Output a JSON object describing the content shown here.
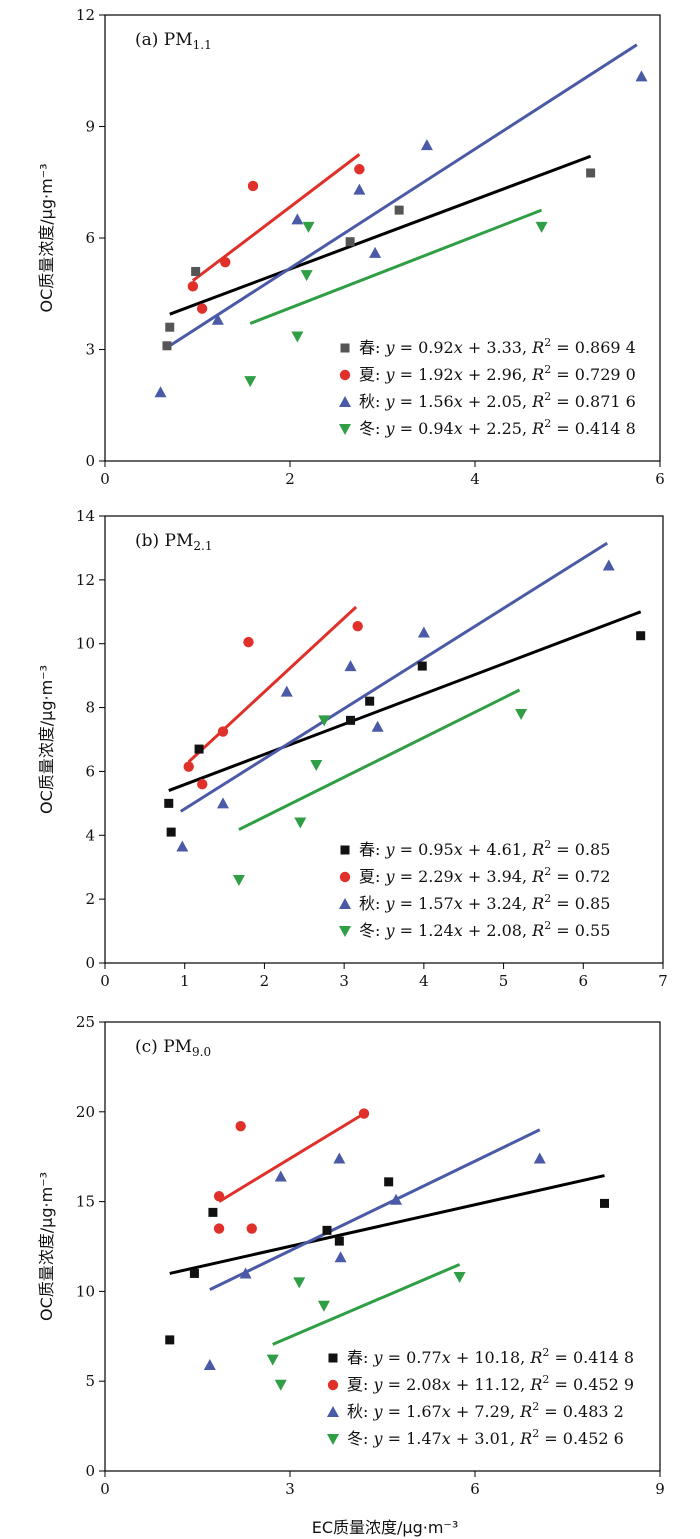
{
  "figure": {
    "xlabel": "EC质量浓度/μg·m⁻³",
    "ylabel": "OC质量浓度/μg·m⁻³"
  },
  "colors": {
    "spring": "#000000",
    "summer": "#e0302a",
    "autumn": "#4a5aa6",
    "winter": "#2f9e44"
  },
  "chart_data": [
    {
      "type": "scatter",
      "panel_label": "(a) PM",
      "panel_sub": "1.1",
      "xlim": [
        0,
        6
      ],
      "ylim": [
        0,
        12
      ],
      "xticks": [
        "0",
        "2",
        "4",
        "6"
      ],
      "yticks": [
        "0",
        "3",
        "6",
        "9",
        "12"
      ],
      "series": [
        {
          "name": "春",
          "marker": "square",
          "color": "#555555",
          "fit_color": "#000000",
          "eq_prefix": "y = 0.92x + 3.33, ",
          "r2": "R² = 0.869 4",
          "x": [
            0.67,
            0.7,
            0.98,
            2.65,
            3.18,
            5.25
          ],
          "y": [
            3.1,
            3.6,
            5.1,
            5.9,
            6.75,
            7.75
          ],
          "fit": [
            [
              0.7,
              3.95
            ],
            [
              5.25,
              8.2
            ]
          ]
        },
        {
          "name": "夏",
          "marker": "circle",
          "color": "#e0302a",
          "fit_color": "#e0302a",
          "eq_prefix": "y = 1.92x + 2.96, ",
          "r2": "R² = 0.729 0",
          "x": [
            0.95,
            1.05,
            1.3,
            1.6,
            2.75
          ],
          "y": [
            4.7,
            4.1,
            5.35,
            7.4,
            7.85
          ],
          "fit": [
            [
              0.95,
              4.85
            ],
            [
              2.75,
              8.25
            ]
          ]
        },
        {
          "name": "秋",
          "marker": "triangle-up",
          "color": "#4a5aa6",
          "fit_color": "#4a5aa6",
          "eq_prefix": "y = 1.56x + 2.05, ",
          "r2": "R² = 0.871 6",
          "x": [
            0.6,
            1.22,
            2.08,
            2.75,
            2.92,
            3.48,
            5.8
          ],
          "y": [
            1.85,
            3.8,
            6.5,
            7.3,
            5.6,
            8.5,
            10.35
          ],
          "fit": [
            [
              0.7,
              3.1
            ],
            [
              5.75,
              11.2
            ]
          ]
        },
        {
          "name": "冬",
          "marker": "triangle-down",
          "color": "#2f9e44",
          "fit_color": "#2f9e44",
          "eq_prefix": "y = 0.94x + 2.25, ",
          "r2": "R² = 0.414 8",
          "x": [
            1.57,
            2.08,
            2.18,
            2.2,
            4.72
          ],
          "y": [
            2.15,
            3.35,
            5.0,
            6.3,
            6.3
          ],
          "fit": [
            [
              1.57,
              3.7
            ],
            [
              4.72,
              6.75
            ]
          ]
        }
      ]
    },
    {
      "type": "scatter",
      "panel_label": "(b) PM",
      "panel_sub": "2.1",
      "xlim": [
        0,
        7
      ],
      "ylim": [
        0,
        14
      ],
      "xticks": [
        "0",
        "1",
        "2",
        "3",
        "4",
        "5",
        "6",
        "7"
      ],
      "yticks": [
        "0",
        "2",
        "4",
        "6",
        "8",
        "10",
        "12",
        "14"
      ],
      "series": [
        {
          "name": "春",
          "marker": "square",
          "color": "#111111",
          "fit_color": "#000000",
          "eq_prefix": "y = 0.95x + 4.61, ",
          "r2": "R² = 0.85",
          "x": [
            0.8,
            0.83,
            1.18,
            3.08,
            3.32,
            3.98,
            6.72
          ],
          "y": [
            5.0,
            4.1,
            6.7,
            7.6,
            8.2,
            9.3,
            10.25
          ],
          "fit": [
            [
              0.8,
              5.4
            ],
            [
              6.72,
              11.0
            ]
          ]
        },
        {
          "name": "夏",
          "marker": "circle",
          "color": "#e0302a",
          "fit_color": "#e0302a",
          "eq_prefix": "y = 2.29x + 3.94, ",
          "r2": "R² = 0.72",
          "x": [
            1.05,
            1.22,
            1.48,
            1.8,
            3.17
          ],
          "y": [
            6.15,
            5.6,
            7.25,
            10.05,
            10.55
          ],
          "fit": [
            [
              1.05,
              6.3
            ],
            [
              3.15,
              11.15
            ]
          ]
        },
        {
          "name": "秋",
          "marker": "triangle-up",
          "color": "#4a5aa6",
          "fit_color": "#4a5aa6",
          "eq_prefix": "y = 1.57x + 3.24, ",
          "r2": "R² = 0.85",
          "x": [
            0.97,
            1.48,
            2.28,
            3.08,
            3.42,
            4.0,
            6.32
          ],
          "y": [
            3.65,
            5.0,
            8.5,
            9.3,
            7.4,
            10.35,
            12.45
          ],
          "fit": [
            [
              0.95,
              4.75
            ],
            [
              6.3,
              13.15
            ]
          ]
        },
        {
          "name": "冬",
          "marker": "triangle-down",
          "color": "#2f9e44",
          "fit_color": "#2f9e44",
          "eq_prefix": "y = 1.24x + 2.08, ",
          "r2": "R² = 0.55",
          "x": [
            1.68,
            2.45,
            2.65,
            2.75,
            5.22
          ],
          "y": [
            2.6,
            4.4,
            6.2,
            7.6,
            7.8
          ],
          "fit": [
            [
              1.68,
              4.18
            ],
            [
              5.2,
              8.55
            ]
          ]
        }
      ]
    },
    {
      "type": "scatter",
      "panel_label": "(c) PM",
      "panel_sub": "9.0",
      "xlim": [
        0,
        9
      ],
      "ylim": [
        0,
        25
      ],
      "xticks": [
        "0",
        "3",
        "6",
        "9"
      ],
      "yticks": [
        "0",
        "5",
        "10",
        "15",
        "20",
        "25"
      ],
      "series": [
        {
          "name": "春",
          "marker": "square",
          "color": "#111111",
          "fit_color": "#000000",
          "eq_prefix": "y = 0.77x + 10.18, ",
          "r2": "R² = 0.414 8",
          "x": [
            1.05,
            1.45,
            1.75,
            3.6,
            3.8,
            4.6,
            8.1
          ],
          "y": [
            7.3,
            11.0,
            14.4,
            13.4,
            12.8,
            16.1,
            14.9
          ],
          "fit": [
            [
              1.05,
              11.0
            ],
            [
              8.1,
              16.45
            ]
          ]
        },
        {
          "name": "夏",
          "marker": "circle",
          "color": "#e0302a",
          "fit_color": "#e0302a",
          "eq_prefix": "y = 2.08x + 11.12, ",
          "r2": "R² = 0.452 9",
          "x": [
            1.85,
            1.85,
            2.2,
            2.38,
            4.2
          ],
          "y": [
            13.5,
            15.3,
            19.2,
            13.5,
            19.9
          ],
          "fit": [
            [
              1.85,
              15.0
            ],
            [
              4.2,
              19.9
            ]
          ]
        },
        {
          "name": "秋",
          "marker": "triangle-up",
          "color": "#4a5aa6",
          "fit_color": "#4a5aa6",
          "eq_prefix": "y = 1.67x + 7.29, ",
          "r2": "R² = 0.483 2",
          "x": [
            1.7,
            2.28,
            2.85,
            3.8,
            3.82,
            4.72,
            7.05
          ],
          "y": [
            5.9,
            11.0,
            16.4,
            17.4,
            11.9,
            15.1,
            17.4
          ],
          "fit": [
            [
              1.7,
              10.1
            ],
            [
              7.05,
              19.0
            ]
          ]
        },
        {
          "name": "冬",
          "marker": "triangle-down",
          "color": "#2f9e44",
          "fit_color": "#2f9e44",
          "eq_prefix": "y = 1.47x + 3.01, ",
          "r2": "R² = 0.452 6",
          "x": [
            2.72,
            2.85,
            3.15,
            3.55,
            5.75
          ],
          "y": [
            6.2,
            4.8,
            10.5,
            9.2,
            10.8
          ],
          "fit": [
            [
              2.72,
              7.05
            ],
            [
              5.75,
              11.5
            ]
          ]
        }
      ]
    }
  ]
}
